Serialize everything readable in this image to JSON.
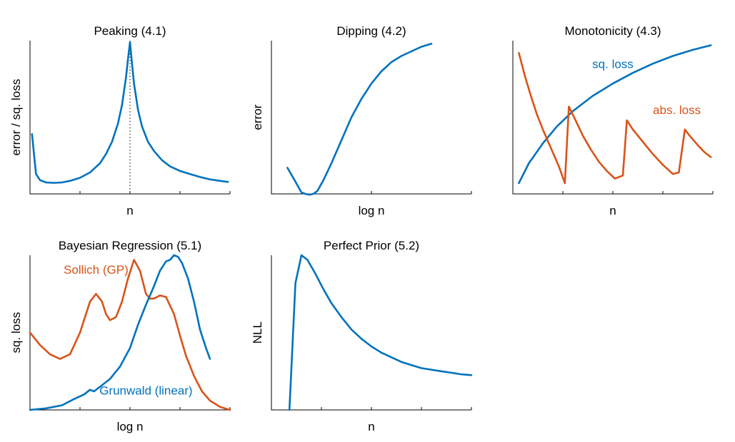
{
  "colors": {
    "blue": "#0072BD",
    "orange": "#D95319",
    "axis": "#000000"
  },
  "chart_data": [
    {
      "type": "line",
      "title": "Peaking (4.1)",
      "xlabel": "n",
      "ylabel": "error / sq. loss",
      "xlim": [
        0,
        1
      ],
      "ylim": [
        0,
        1
      ],
      "grid": false,
      "vline": 0.5,
      "series": [
        {
          "color": "blue",
          "x": [
            0.01,
            0.03,
            0.05,
            0.08,
            0.12,
            0.16,
            0.2,
            0.25,
            0.3,
            0.35,
            0.38,
            0.41,
            0.44,
            0.46,
            0.48,
            0.49,
            0.5,
            0.51,
            0.52,
            0.54,
            0.56,
            0.59,
            0.62,
            0.66,
            0.7,
            0.75,
            0.8,
            0.85,
            0.9,
            0.95,
            0.99
          ],
          "y": [
            0.39,
            0.13,
            0.09,
            0.075,
            0.072,
            0.075,
            0.085,
            0.105,
            0.14,
            0.2,
            0.26,
            0.34,
            0.46,
            0.58,
            0.76,
            0.88,
            0.99,
            0.85,
            0.72,
            0.55,
            0.44,
            0.34,
            0.28,
            0.22,
            0.18,
            0.15,
            0.13,
            0.11,
            0.095,
            0.085,
            0.078
          ]
        }
      ]
    },
    {
      "type": "line",
      "title": "Dipping (4.2)",
      "xlabel": "log n",
      "ylabel": "error",
      "xlim": [
        0,
        1
      ],
      "ylim": [
        0,
        1
      ],
      "grid": false,
      "series": [
        {
          "color": "blue",
          "x": [
            0.08,
            0.12,
            0.15,
            0.17,
            0.19,
            0.21,
            0.23,
            0.26,
            0.3,
            0.35,
            0.4,
            0.45,
            0.5,
            0.55,
            0.6,
            0.65,
            0.7,
            0.75,
            0.8
          ],
          "y": [
            0.17,
            0.08,
            0.01,
            0.0,
            -0.005,
            0.0,
            0.02,
            0.09,
            0.2,
            0.35,
            0.5,
            0.62,
            0.72,
            0.8,
            0.86,
            0.9,
            0.93,
            0.96,
            0.98
          ]
        }
      ]
    },
    {
      "type": "line",
      "title": "Monotonicity (4.3)",
      "xlabel": "n",
      "ylabel": "",
      "xlim": [
        0,
        1
      ],
      "ylim": [
        0,
        1
      ],
      "grid": false,
      "series": [
        {
          "name": "sq. loss",
          "color": "blue",
          "x": [
            0.03,
            0.08,
            0.15,
            0.22,
            0.3,
            0.4,
            0.5,
            0.6,
            0.7,
            0.8,
            0.9,
            0.99
          ],
          "y": [
            0.07,
            0.2,
            0.33,
            0.44,
            0.54,
            0.64,
            0.72,
            0.79,
            0.85,
            0.9,
            0.94,
            0.97
          ]
        },
        {
          "name": "abs. loss",
          "color": "orange",
          "x": [
            0.03,
            0.06,
            0.09,
            0.12,
            0.15,
            0.19,
            0.23,
            0.26,
            0.28,
            0.31,
            0.35,
            0.39,
            0.43,
            0.47,
            0.51,
            0.55,
            0.57,
            0.6,
            0.65,
            0.7,
            0.75,
            0.8,
            0.83,
            0.86,
            0.89,
            0.93,
            0.96,
            0.99
          ],
          "y": [
            0.92,
            0.77,
            0.64,
            0.52,
            0.42,
            0.3,
            0.18,
            0.07,
            0.57,
            0.49,
            0.38,
            0.29,
            0.21,
            0.15,
            0.1,
            0.12,
            0.48,
            0.42,
            0.34,
            0.26,
            0.19,
            0.13,
            0.14,
            0.42,
            0.37,
            0.31,
            0.27,
            0.24
          ]
        }
      ],
      "annotations": [
        {
          "text": "sq. loss",
          "color": "blue",
          "x": 0.5,
          "y": 0.82
        },
        {
          "text": "abs. loss",
          "color": "orange",
          "x": 0.82,
          "y": 0.52
        }
      ]
    },
    {
      "type": "line",
      "title": "Bayesian Regression (5.1)",
      "xlabel": "log n",
      "ylabel": "sq. loss",
      "xlim": [
        0,
        1
      ],
      "ylim": [
        0,
        1
      ],
      "grid": false,
      "series": [
        {
          "name": "Sollich (GP)",
          "color": "orange",
          "x": [
            0.0,
            0.05,
            0.1,
            0.15,
            0.2,
            0.25,
            0.3,
            0.33,
            0.36,
            0.38,
            0.4,
            0.43,
            0.46,
            0.49,
            0.52,
            0.55,
            0.58,
            0.6,
            0.62,
            0.65,
            0.68,
            0.72,
            0.75,
            0.78,
            0.82,
            0.86,
            0.9,
            0.95,
            1.0
          ],
          "y": [
            0.5,
            0.42,
            0.36,
            0.33,
            0.36,
            0.5,
            0.7,
            0.75,
            0.7,
            0.62,
            0.58,
            0.6,
            0.7,
            0.85,
            0.97,
            0.9,
            0.75,
            0.72,
            0.72,
            0.74,
            0.73,
            0.62,
            0.48,
            0.35,
            0.22,
            0.12,
            0.06,
            0.02,
            0.0
          ]
        },
        {
          "name": "Grunwald (linear)",
          "color": "blue",
          "x": [
            0.0,
            0.08,
            0.16,
            0.22,
            0.27,
            0.3,
            0.32,
            0.35,
            0.4,
            0.45,
            0.5,
            0.54,
            0.58,
            0.62,
            0.65,
            0.68,
            0.7,
            0.72,
            0.74,
            0.76,
            0.79,
            0.82,
            0.85,
            0.88,
            0.9
          ],
          "y": [
            0.0,
            0.01,
            0.03,
            0.07,
            0.1,
            0.13,
            0.12,
            0.15,
            0.2,
            0.28,
            0.4,
            0.55,
            0.68,
            0.8,
            0.9,
            0.96,
            0.97,
            1.0,
            0.99,
            0.95,
            0.85,
            0.7,
            0.52,
            0.4,
            0.33
          ]
        }
      ],
      "annotations": [
        {
          "text": "Sollich (GP)",
          "color": "orange",
          "x": 0.33,
          "y": 0.88
        },
        {
          "text": "Grunwald (linear)",
          "color": "blue",
          "x": 0.58,
          "y": 0.1
        }
      ]
    },
    {
      "type": "line",
      "title": "Perfect Prior (5.2)",
      "xlabel": "n",
      "ylabel": "NLL",
      "xlim": [
        0,
        1
      ],
      "ylim": [
        0,
        1
      ],
      "grid": false,
      "series": [
        {
          "color": "blue",
          "x": [
            0.09,
            0.12,
            0.15,
            0.18,
            0.22,
            0.26,
            0.3,
            0.35,
            0.4,
            0.45,
            0.5,
            0.55,
            0.6,
            0.65,
            0.7,
            0.75,
            0.8,
            0.85,
            0.9,
            0.95,
            1.0
          ],
          "y": [
            0.0,
            0.82,
            1.0,
            0.97,
            0.88,
            0.78,
            0.69,
            0.6,
            0.52,
            0.46,
            0.41,
            0.37,
            0.34,
            0.31,
            0.29,
            0.27,
            0.26,
            0.25,
            0.24,
            0.23,
            0.225
          ]
        }
      ]
    }
  ]
}
